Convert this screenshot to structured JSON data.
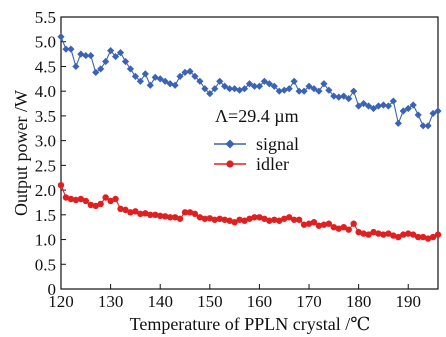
{
  "chart_data": {
    "type": "line",
    "xlabel": "Temperature of PPLN crystal /℃",
    "ylabel": "Output power /W",
    "xlim": [
      120,
      196
    ],
    "ylim": [
      0,
      5.5
    ],
    "xticks": [
      120,
      130,
      140,
      150,
      160,
      170,
      180,
      190
    ],
    "yticks": [
      0,
      0.5,
      1.0,
      1.5,
      2.0,
      2.5,
      3.0,
      3.5,
      4.0,
      4.5,
      5.0,
      5.5
    ],
    "ytick_labels": [
      "0",
      "0.5",
      "1.0",
      "1.5",
      "2.0",
      "2.5",
      "3.0",
      "3.5",
      "4.0",
      "4.5",
      "5.0",
      "5.5"
    ],
    "legend_title": "Λ=29.4 µm",
    "legend_position": "center-right",
    "grid": false,
    "series": [
      {
        "name": "signal",
        "color": "#3b63b5",
        "marker": "diamond",
        "x": [
          120,
          121,
          122,
          123,
          124,
          125,
          126,
          127,
          128,
          129,
          130,
          131,
          132,
          133,
          134,
          135,
          136,
          137,
          138,
          139,
          140,
          141,
          142,
          143,
          144,
          145,
          146,
          147,
          148,
          149,
          150,
          151,
          152,
          153,
          154,
          155,
          156,
          157,
          158,
          159,
          160,
          161,
          162,
          163,
          164,
          165,
          166,
          167,
          168,
          169,
          170,
          171,
          172,
          173,
          174,
          175,
          176,
          177,
          178,
          179,
          180,
          181,
          182,
          183,
          184,
          185,
          186,
          187,
          188,
          189,
          190,
          191,
          192,
          193,
          194,
          195,
          196
        ],
        "values": [
          5.1,
          4.85,
          4.85,
          4.5,
          4.75,
          4.72,
          4.72,
          4.38,
          4.45,
          4.6,
          4.82,
          4.7,
          4.78,
          4.6,
          4.45,
          4.3,
          4.2,
          4.35,
          4.12,
          4.28,
          4.25,
          4.2,
          4.15,
          4.12,
          4.3,
          4.38,
          4.4,
          4.3,
          4.2,
          4.05,
          3.95,
          4.05,
          4.2,
          4.1,
          4.05,
          4.05,
          4.02,
          4.05,
          4.15,
          4.1,
          4.1,
          4.2,
          4.15,
          4.1,
          4.0,
          4.02,
          4.05,
          4.2,
          4.0,
          4.0,
          4.1,
          4.05,
          4.0,
          4.15,
          4.02,
          3.9,
          3.88,
          3.9,
          3.85,
          4.0,
          3.7,
          3.75,
          3.7,
          3.65,
          3.7,
          3.72,
          3.7,
          3.8,
          3.35,
          3.6,
          3.65,
          3.72,
          3.52,
          3.3,
          3.3,
          3.55,
          3.6
        ]
      },
      {
        "name": "idler",
        "color": "#e02020",
        "marker": "circle",
        "x": [
          120,
          121,
          122,
          123,
          124,
          125,
          126,
          127,
          128,
          129,
          130,
          131,
          132,
          133,
          134,
          135,
          136,
          137,
          138,
          139,
          140,
          141,
          142,
          143,
          144,
          145,
          146,
          147,
          148,
          149,
          150,
          151,
          152,
          153,
          154,
          155,
          156,
          157,
          158,
          159,
          160,
          161,
          162,
          163,
          164,
          165,
          166,
          167,
          168,
          169,
          170,
          171,
          172,
          173,
          174,
          175,
          176,
          177,
          178,
          179,
          180,
          181,
          182,
          183,
          184,
          185,
          186,
          187,
          188,
          189,
          190,
          191,
          192,
          193,
          194,
          195,
          196
        ],
        "values": [
          2.1,
          1.85,
          1.82,
          1.8,
          1.82,
          1.78,
          1.7,
          1.68,
          1.72,
          1.85,
          1.78,
          1.82,
          1.62,
          1.6,
          1.55,
          1.57,
          1.52,
          1.53,
          1.5,
          1.5,
          1.48,
          1.47,
          1.45,
          1.45,
          1.42,
          1.55,
          1.55,
          1.52,
          1.45,
          1.42,
          1.43,
          1.4,
          1.42,
          1.4,
          1.38,
          1.35,
          1.4,
          1.38,
          1.42,
          1.45,
          1.45,
          1.42,
          1.38,
          1.4,
          1.38,
          1.42,
          1.45,
          1.4,
          1.4,
          1.3,
          1.32,
          1.35,
          1.28,
          1.3,
          1.32,
          1.25,
          1.22,
          1.25,
          1.2,
          1.32,
          1.15,
          1.12,
          1.1,
          1.15,
          1.12,
          1.1,
          1.12,
          1.08,
          1.05,
          1.1,
          1.12,
          1.1,
          1.05,
          1.05,
          1.02,
          1.05,
          1.1
        ]
      }
    ]
  }
}
